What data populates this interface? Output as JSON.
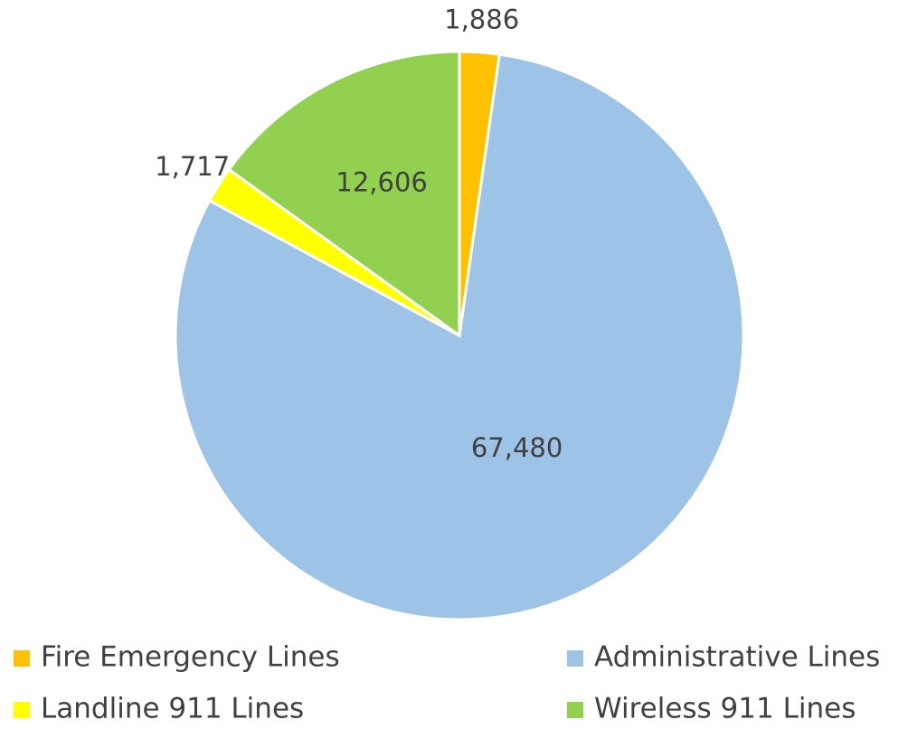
{
  "chart_data": {
    "type": "pie",
    "categories": [
      "Fire Emergency Lines",
      "Administrative Lines",
      "Landline 911 Lines",
      "Wireless 911 Lines"
    ],
    "values": [
      1886,
      67480,
      1717,
      12606
    ],
    "value_labels": [
      "1,886",
      "67,480",
      "1,717",
      "12,606"
    ],
    "colors": [
      "#ffc000",
      "#9dc3e6",
      "#ffff00",
      "#92d050"
    ],
    "legend": "bottom"
  }
}
